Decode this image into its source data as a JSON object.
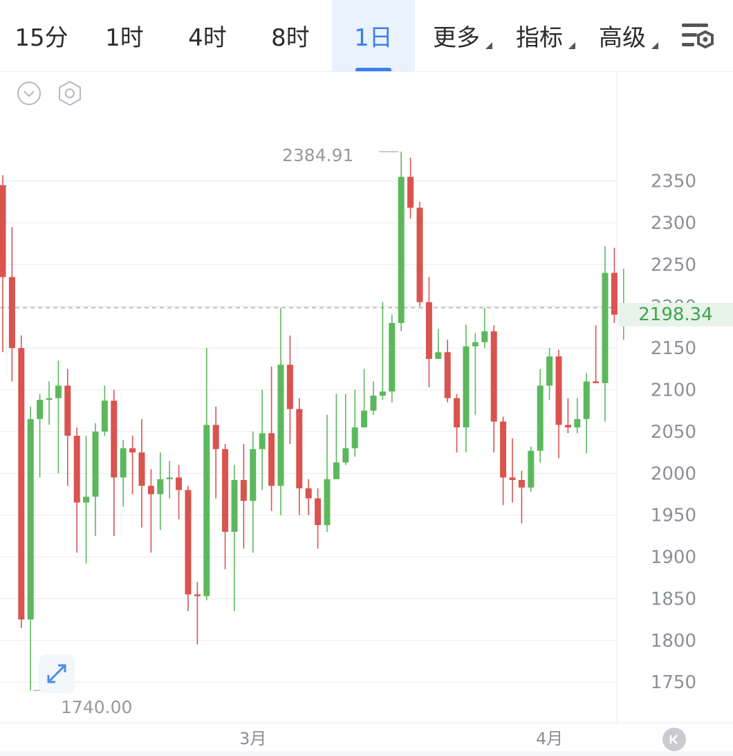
{
  "toolbar": {
    "tabs": [
      {
        "label": "15分",
        "active": false
      },
      {
        "label": "1时",
        "active": false
      },
      {
        "label": "4时",
        "active": false
      },
      {
        "label": "8时",
        "active": false
      },
      {
        "label": "1日",
        "active": true
      },
      {
        "label": "更多",
        "active": false,
        "dropdown": true
      },
      {
        "label": "指标",
        "active": false,
        "dropdown": true
      },
      {
        "label": "高级",
        "active": false,
        "dropdown": true
      }
    ],
    "settings_icon": "chart-settings-icon"
  },
  "chart_tools": {
    "collapse_icon": "chevron-down-circle-icon",
    "settings_icon": "hexagon-settings-icon",
    "expand_icon": "expand-diagonal-icon",
    "back_icon": "rewind-to-latest-icon"
  },
  "colors": {
    "up": "#5cb85c",
    "down": "#d9534f",
    "accent": "#3b7ef0",
    "current_price": "#3fa34d"
  },
  "chart_data": {
    "type": "candlestick",
    "y_axis": {
      "ticks": [
        "2350",
        "2300",
        "2250",
        "2200",
        "2150",
        "2100",
        "2050",
        "2000",
        "1950",
        "1900",
        "1850",
        "1800",
        "1750"
      ],
      "range": [
        1722,
        2416
      ]
    },
    "x_axis": {
      "ticks": [
        {
          "label": "3月",
          "index": 27
        },
        {
          "label": "4月",
          "index": 59
        }
      ]
    },
    "high_marker": "2384.91",
    "low_marker": "1740.00",
    "current_price": "2198.34",
    "current_value": 2198.34,
    "candles": [
      [
        2345,
        2235,
        2357,
        2145
      ],
      [
        2235,
        2150,
        2295,
        2110
      ],
      [
        2150,
        1825,
        2165,
        1815
      ],
      [
        1825,
        2065,
        2080,
        1740
      ],
      [
        2065,
        2088,
        2095,
        1995
      ],
      [
        2088,
        2090,
        2110,
        2058
      ],
      [
        2090,
        2105,
        2135,
        2000
      ],
      [
        2105,
        2045,
        2125,
        1985
      ],
      [
        2045,
        1965,
        2055,
        1905
      ],
      [
        1965,
        1972,
        2045,
        1892
      ],
      [
        1972,
        2050,
        2060,
        1925
      ],
      [
        2050,
        2087,
        2105,
        2045
      ],
      [
        2087,
        1995,
        2100,
        1925
      ],
      [
        1995,
        2030,
        2040,
        1960
      ],
      [
        2030,
        2025,
        2045,
        1975
      ],
      [
        2025,
        1985,
        2065,
        1935
      ],
      [
        1985,
        1975,
        2005,
        1905
      ],
      [
        1975,
        1993,
        2025,
        1932
      ],
      [
        1993,
        1995,
        2015,
        1970
      ],
      [
        1995,
        1980,
        2010,
        1945
      ],
      [
        1980,
        1855,
        1985,
        1835
      ],
      [
        1855,
        1853,
        1870,
        1795
      ],
      [
        1853,
        2058,
        2150,
        1848
      ],
      [
        2058,
        2029,
        2080,
        1970
      ],
      [
        2029,
        1930,
        2035,
        1885
      ],
      [
        1930,
        1992,
        2010,
        1835
      ],
      [
        1992,
        1967,
        2035,
        1910
      ],
      [
        1967,
        2029,
        2050,
        1905
      ],
      [
        2029,
        2048,
        2100,
        1980
      ],
      [
        2048,
        1985,
        2128,
        1955
      ],
      [
        1985,
        2130,
        2198,
        1950
      ],
      [
        2130,
        2077,
        2165,
        2035
      ],
      [
        2077,
        1982,
        2090,
        1950
      ],
      [
        1982,
        1970,
        1993,
        1950
      ],
      [
        1970,
        1938,
        1982,
        1910
      ],
      [
        1938,
        1993,
        2070,
        1930
      ],
      [
        1993,
        2013,
        2095,
        2000
      ],
      [
        2013,
        2030,
        2095,
        2010
      ],
      [
        2030,
        2055,
        2100,
        2020
      ],
      [
        2055,
        2075,
        2125,
        2055
      ],
      [
        2075,
        2093,
        2110,
        2070
      ],
      [
        2093,
        2098,
        2205,
        2088
      ],
      [
        2098,
        2180,
        2190,
        2085
      ],
      [
        2180,
        2355,
        2385,
        2170
      ],
      [
        2355,
        2318,
        2378,
        2305
      ],
      [
        2318,
        2205,
        2325,
        2200
      ],
      [
        2205,
        2137,
        2235,
        2103
      ],
      [
        2137,
        2145,
        2173,
        2137
      ],
      [
        2145,
        2090,
        2160,
        2085
      ],
      [
        2090,
        2055,
        2095,
        2025
      ],
      [
        2055,
        2152,
        2178,
        2025
      ],
      [
        2152,
        2157,
        2168,
        2070
      ],
      [
        2157,
        2170,
        2198,
        2150
      ],
      [
        2170,
        2062,
        2177,
        2025
      ],
      [
        2062,
        1995,
        2068,
        1962
      ],
      [
        1995,
        1992,
        2042,
        1965
      ],
      [
        1992,
        1983,
        2003,
        1940
      ],
      [
        1983,
        2027,
        2032,
        1978
      ],
      [
        2027,
        2105,
        2125,
        2013
      ],
      [
        2105,
        2140,
        2150,
        2088
      ],
      [
        2140,
        2058,
        2148,
        2018
      ],
      [
        2058,
        2055,
        2090,
        2048
      ],
      [
        2055,
        2065,
        2090,
        2048
      ],
      [
        2065,
        2110,
        2120,
        2024
      ],
      [
        2110,
        2108,
        2177,
        2108
      ],
      [
        2108,
        2240,
        2272,
        2062
      ],
      [
        2240,
        2190,
        2270,
        2180
      ],
      [
        2190,
        2190,
        2245,
        2160
      ],
      [
        2190,
        2198,
        2200,
        2179
      ]
    ]
  }
}
